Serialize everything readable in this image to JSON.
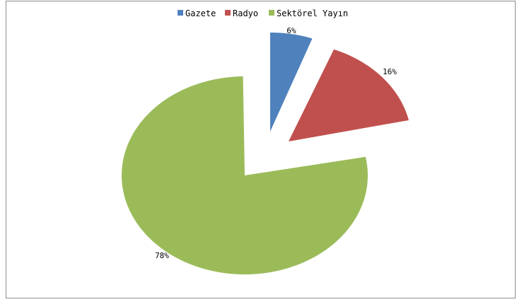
{
  "chart_data": {
    "type": "pie",
    "title": "",
    "legend_position": "top",
    "exploded": true,
    "slices": [
      {
        "name": "Gazete",
        "value": 6,
        "label": "6%",
        "color": "#4f81bd"
      },
      {
        "name": "Radyo",
        "value": 16,
        "label": "16%",
        "color": "#c0504d"
      },
      {
        "name": "Sektörel Yayın",
        "value": 78,
        "label": "78%",
        "color": "#9bbb59"
      }
    ]
  }
}
